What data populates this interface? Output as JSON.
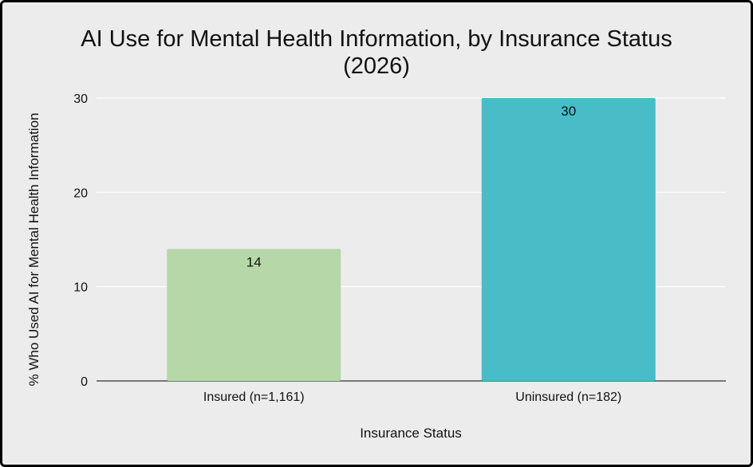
{
  "chart_data": {
    "type": "bar",
    "title": "AI Use for Mental Health Information, by Insurance Status",
    "subtitle": "(2026)",
    "xlabel": "Insurance Status",
    "ylabel": "% Who Used AI for Mental Health Information",
    "categories": [
      "Insured (n=1,161)",
      "Uninsured (n=182)"
    ],
    "values": [
      14,
      30
    ],
    "data_labels": [
      "14",
      "30"
    ],
    "colors": [
      "#b6d7a8",
      "#48bdc7"
    ],
    "ylim": [
      0,
      30
    ],
    "yticks": [
      0,
      10,
      20,
      30
    ],
    "ytick_labels": [
      "0",
      "10",
      "20",
      "30"
    ],
    "grid": true
  }
}
